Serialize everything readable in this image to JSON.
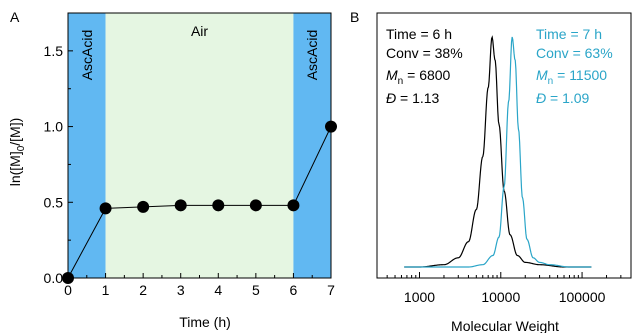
{
  "colors": {
    "ascacid_band": "#61b8f2",
    "air_band": "#e5f6e2",
    "black_series": "#000000",
    "blue_series": "#2aa5c8"
  },
  "chart_data": [
    {
      "panel_label": "A",
      "type": "scatter",
      "xlabel": "Time (h)",
      "ylabel_parts": {
        "a": "ln([M]",
        "sub": "0",
        "b": "/[M])"
      },
      "xlim": [
        0,
        7
      ],
      "ylim": [
        0,
        1.75
      ],
      "x_ticks": [
        0,
        1,
        2,
        3,
        4,
        5,
        6,
        7
      ],
      "y_ticks": [
        "0.0",
        "0.5",
        "1.0",
        "1.5"
      ],
      "regions": [
        {
          "label": "AscAcid",
          "from": 0,
          "to": 1,
          "color": "#61b8f2"
        },
        {
          "label": "Air",
          "from": 1,
          "to": 6,
          "color": "#e5f6e2"
        },
        {
          "label": "AscAcid",
          "from": 6,
          "to": 7,
          "color": "#61b8f2"
        }
      ],
      "x": [
        0,
        1,
        2,
        3,
        4,
        5,
        6,
        7
      ],
      "y": [
        0.0,
        0.46,
        0.47,
        0.48,
        0.48,
        0.48,
        0.48,
        1.0
      ]
    },
    {
      "panel_label": "B",
      "type": "line",
      "xlabel": "Molecular Weight",
      "x_scale": "log",
      "xlim": [
        300,
        400000
      ],
      "x_tick_labels": [
        "1000",
        "10000",
        "100000"
      ],
      "series": [
        {
          "color": "#000000",
          "annotation": {
            "time": "Time = 6 h",
            "conv": "Conv = 38%",
            "mn_value": " = 6800",
            "d_value": " = 1.13"
          },
          "peak": 7800,
          "x": [
            650,
            1000,
            2000,
            3000,
            4000,
            5000,
            6000,
            7000,
            7800,
            8500,
            9500,
            11000,
            13000,
            16000,
            20000,
            30000,
            60000,
            130000
          ],
          "y": [
            0.0,
            0.0,
            0.01,
            0.04,
            0.11,
            0.25,
            0.48,
            0.78,
            1.0,
            0.9,
            0.62,
            0.33,
            0.14,
            0.05,
            0.02,
            0.01,
            0.0,
            0.0
          ]
        },
        {
          "color": "#2aa5c8",
          "annotation": {
            "time": "Time = 7 h",
            "conv": "Conv = 63%",
            "mn_value": " = 11500",
            "d_value": " = 1.09"
          },
          "peak": 13800,
          "x": [
            650,
            2000,
            4000,
            6000,
            8000,
            9500,
            11000,
            12500,
            13800,
            15000,
            16500,
            18500,
            21000,
            25000,
            30000,
            40000,
            70000,
            130000
          ],
          "y": [
            0.0,
            0.0,
            0.0,
            0.01,
            0.05,
            0.13,
            0.35,
            0.72,
            1.0,
            0.9,
            0.6,
            0.3,
            0.12,
            0.04,
            0.02,
            0.01,
            0.0,
            0.0
          ]
        }
      ]
    }
  ]
}
